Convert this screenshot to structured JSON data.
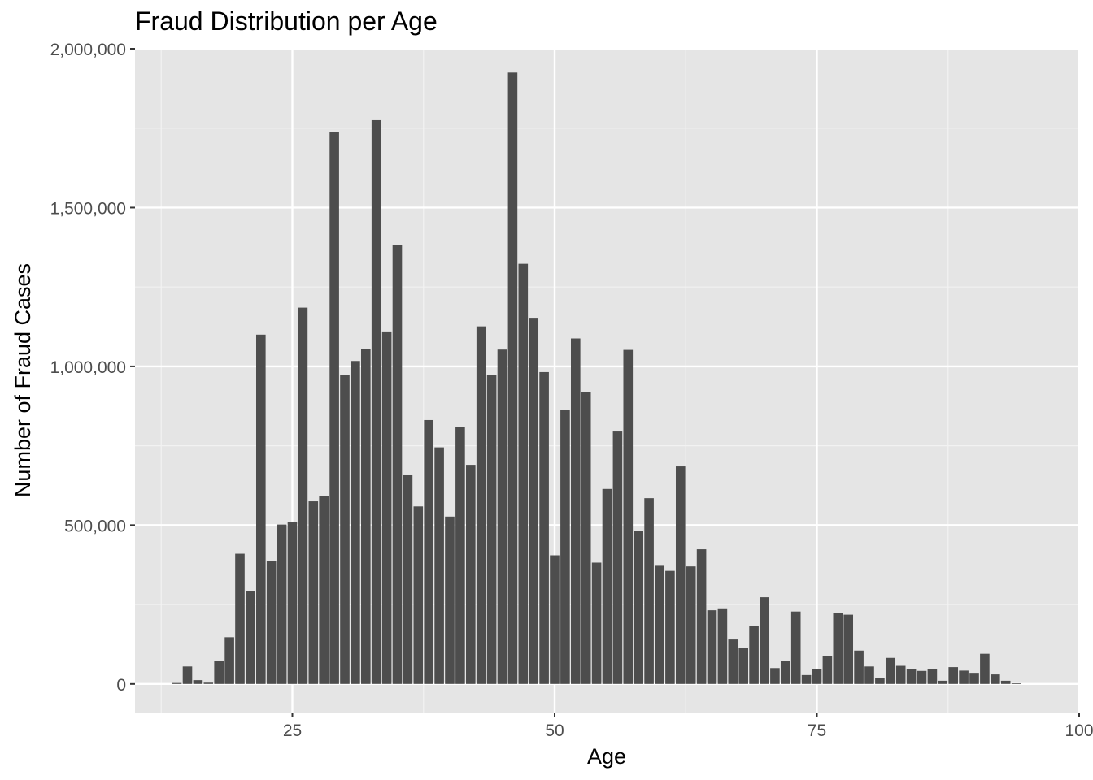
{
  "chart_data": {
    "type": "bar",
    "title": "Fraud Distribution per Age",
    "xlabel": "Age",
    "ylabel": "Number of Fraud Cases",
    "xlim": [
      10,
      100
    ],
    "ylim": [
      -90000,
      2000000
    ],
    "x_ticks": [
      {
        "value": 25,
        "label": "25"
      },
      {
        "value": 50,
        "label": "50"
      },
      {
        "value": 75,
        "label": "75"
      },
      {
        "value": 100,
        "label": "100"
      }
    ],
    "y_ticks": [
      {
        "value": 0,
        "label": "0"
      },
      {
        "value": 500000,
        "label": "500,000"
      },
      {
        "value": 1000000,
        "label": "1,000,000"
      },
      {
        "value": 1500000,
        "label": "1,500,000"
      },
      {
        "value": 2000000,
        "label": "2,000,000"
      }
    ],
    "grid": true,
    "bar_color": "#4d4d4d",
    "panel_color": "#e5e5e5",
    "grid_color": "#ffffff",
    "x": [
      14,
      15,
      16,
      17,
      18,
      19,
      20,
      21,
      22,
      23,
      24,
      25,
      26,
      27,
      28,
      29,
      30,
      31,
      32,
      33,
      34,
      35,
      36,
      37,
      38,
      39,
      40,
      41,
      42,
      43,
      44,
      45,
      46,
      47,
      48,
      49,
      50,
      51,
      52,
      53,
      54,
      55,
      56,
      57,
      58,
      59,
      60,
      61,
      62,
      63,
      64,
      65,
      66,
      67,
      68,
      69,
      70,
      71,
      72,
      73,
      74,
      75,
      76,
      77,
      78,
      79,
      80,
      81,
      82,
      83,
      84,
      85,
      86,
      87,
      88,
      89,
      90,
      91,
      92,
      93,
      94
    ],
    "values": [
      3000,
      55000,
      12000,
      4000,
      72000,
      147000,
      410000,
      293000,
      1100000,
      386000,
      502000,
      511000,
      1185000,
      575000,
      593000,
      1738000,
      972000,
      1017000,
      1055000,
      1775000,
      1110000,
      1383000,
      657000,
      559000,
      831000,
      745000,
      527000,
      810000,
      690000,
      1126000,
      972000,
      1053000,
      1925000,
      1323000,
      1153000,
      982000,
      405000,
      862000,
      1088000,
      920000,
      382000,
      614000,
      795000,
      1052000,
      481000,
      585000,
      372000,
      356000,
      685000,
      370000,
      424000,
      232000,
      238000,
      140000,
      113000,
      183000,
      273000,
      50000,
      73000,
      228000,
      28000,
      46000,
      87000,
      223000,
      218000,
      105000,
      55000,
      18000,
      82000,
      57000,
      46000,
      41000,
      47000,
      10000,
      53000,
      42000,
      35000,
      95000,
      30000,
      10000,
      2000
    ]
  }
}
